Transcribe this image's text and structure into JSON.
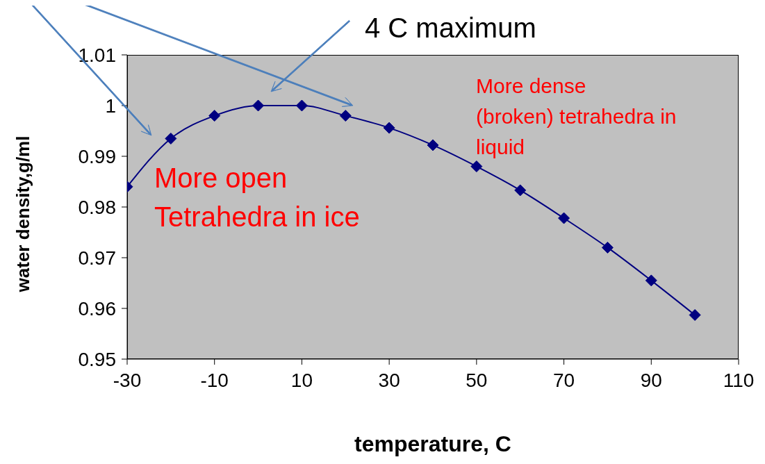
{
  "chart_data": {
    "type": "line",
    "xlabel": "temperature,  C",
    "ylabel": "water density,g/ml",
    "x": [
      -30,
      -20,
      -10,
      0,
      10,
      20,
      30,
      40,
      50,
      60,
      70,
      80,
      90,
      100
    ],
    "series": [
      {
        "color": "#000080",
        "values": [
          0.984,
          0.9935,
          0.998,
          1.0,
          1.0,
          0.998,
          0.9956,
          0.9922,
          0.988,
          0.9833,
          0.9778,
          0.972,
          0.9655,
          0.9587
        ]
      }
    ],
    "xlim": [
      -30,
      110
    ],
    "xticks": [
      -30,
      -10,
      10,
      30,
      50,
      70,
      90,
      110
    ],
    "ylim": [
      0.95,
      1.01
    ],
    "yticks": [
      0.95,
      0.96,
      0.97,
      0.98,
      0.99,
      1,
      1.01
    ],
    "grid": false,
    "legend": false,
    "marker": "diamond",
    "line_style": "solid",
    "annotations": [
      "4 C maximum",
      "More open\nTetrahedra in ice",
      "More dense\n(broken) tetrahedra in\nliquid"
    ]
  }
}
